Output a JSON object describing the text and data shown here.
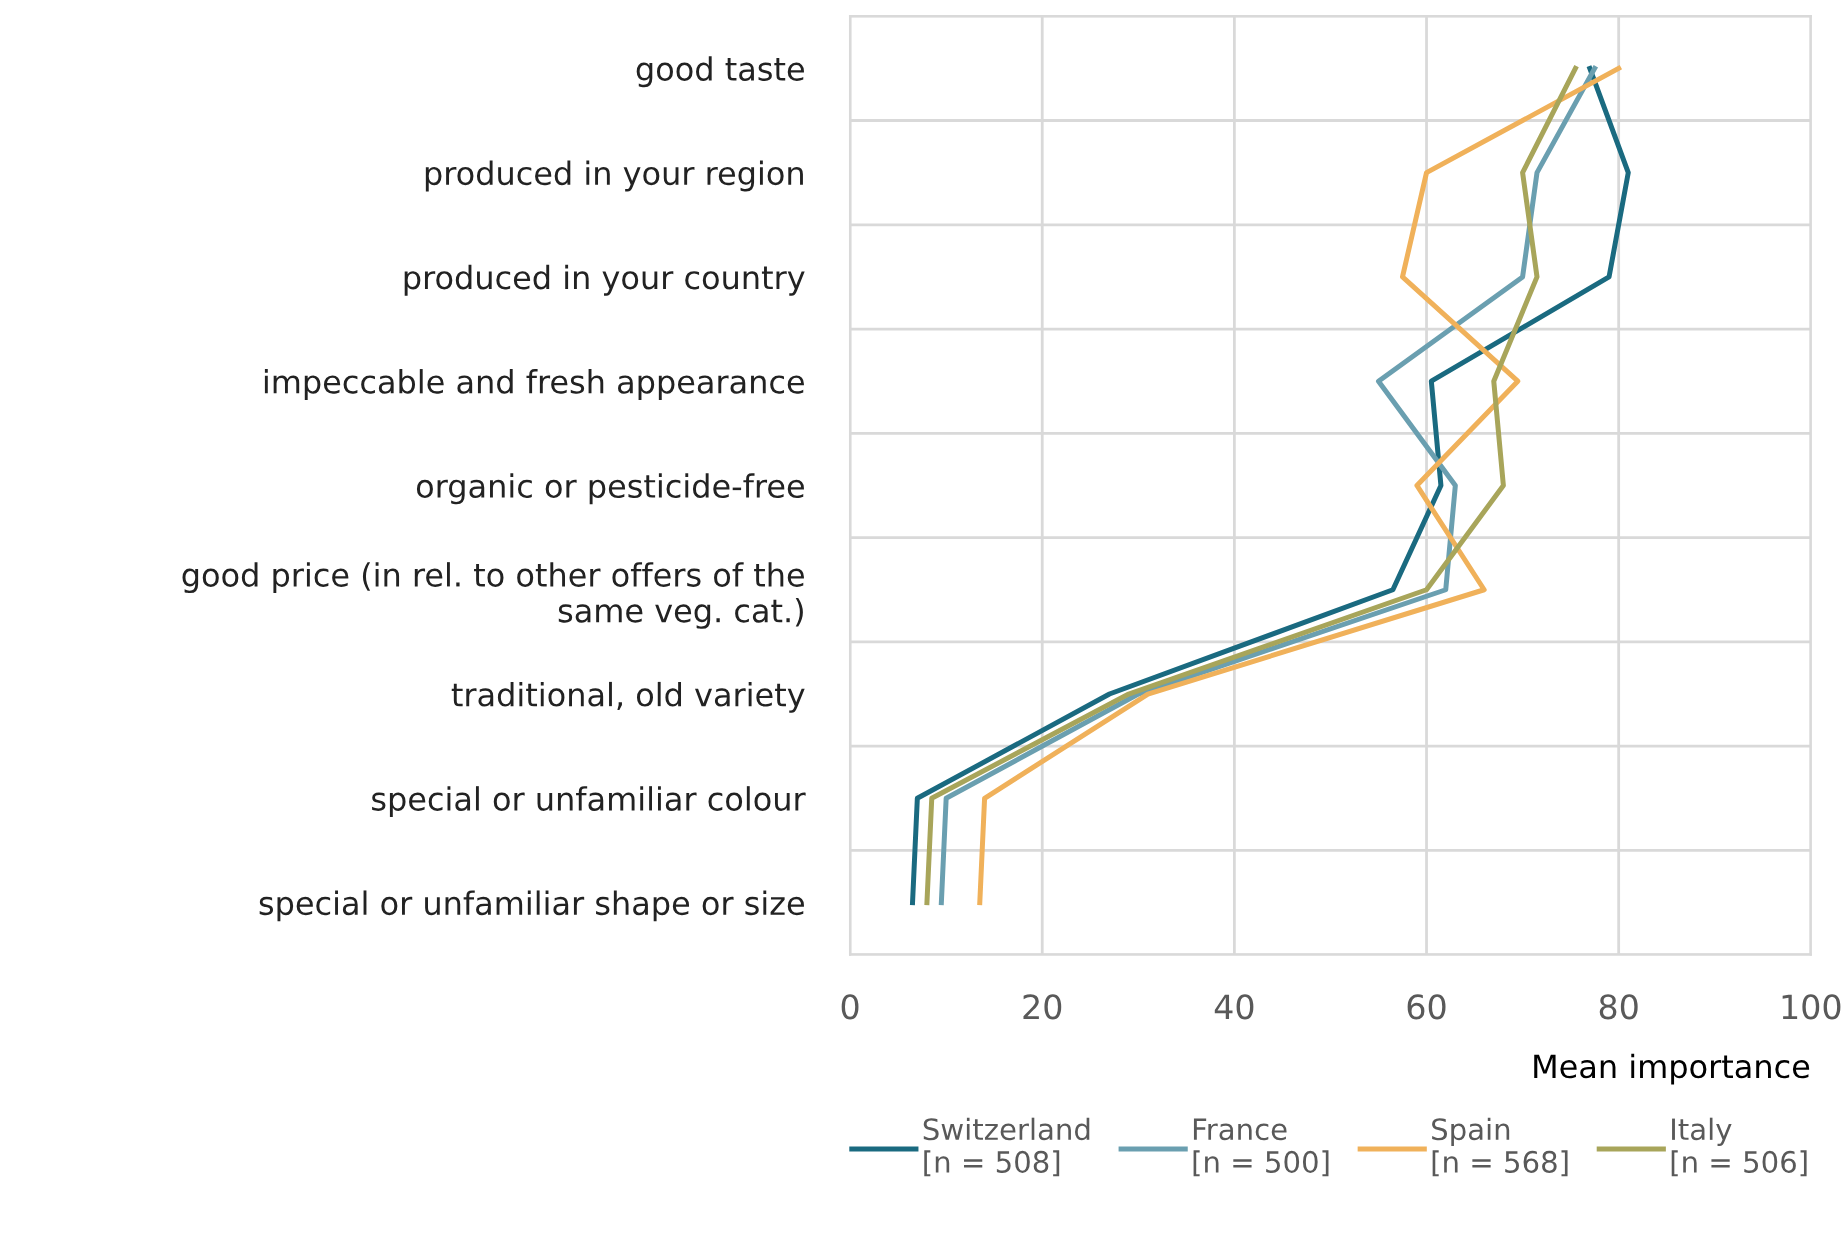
{
  "chart_data": {
    "type": "line",
    "orientation": "horizontal",
    "xlabel": "Mean importance",
    "categories": [
      "good taste",
      "produced in your region",
      "produced in your country",
      "impeccable and fresh appearance",
      "organic or pesticide-free",
      "good price (in rel. to other offers of the same veg. cat.)",
      "traditional, old variety",
      "special or unfamiliar colour",
      "special or unfamiliar shape or size"
    ],
    "series": [
      {
        "name": "Switzerland\n[n = 508]",
        "color": "#1a6a80",
        "values": [
          77,
          81,
          79,
          60.5,
          61.5,
          56.5,
          27,
          7,
          6.5
        ]
      },
      {
        "name": "France\n[n = 500]",
        "color": "#6a9fb0",
        "values": [
          77.5,
          71.5,
          70,
          55,
          63,
          62,
          30,
          10,
          9.5
        ]
      },
      {
        "name": "Spain\n[n = 568]",
        "color": "#f0b15a",
        "values": [
          80,
          60,
          57.5,
          69.5,
          59,
          66,
          31,
          14,
          13.5
        ]
      },
      {
        "name": "Italy\n[n = 506]",
        "color": "#a8a55a",
        "values": [
          75.5,
          70,
          71.5,
          67,
          68,
          60,
          29,
          8.5,
          8
        ]
      }
    ],
    "xlim": [
      0,
      100
    ],
    "xticks": [
      0,
      20,
      40,
      60,
      80,
      100
    ],
    "grid": true,
    "legend": "bottom",
    "marker": "none",
    "line_style": "solid"
  }
}
